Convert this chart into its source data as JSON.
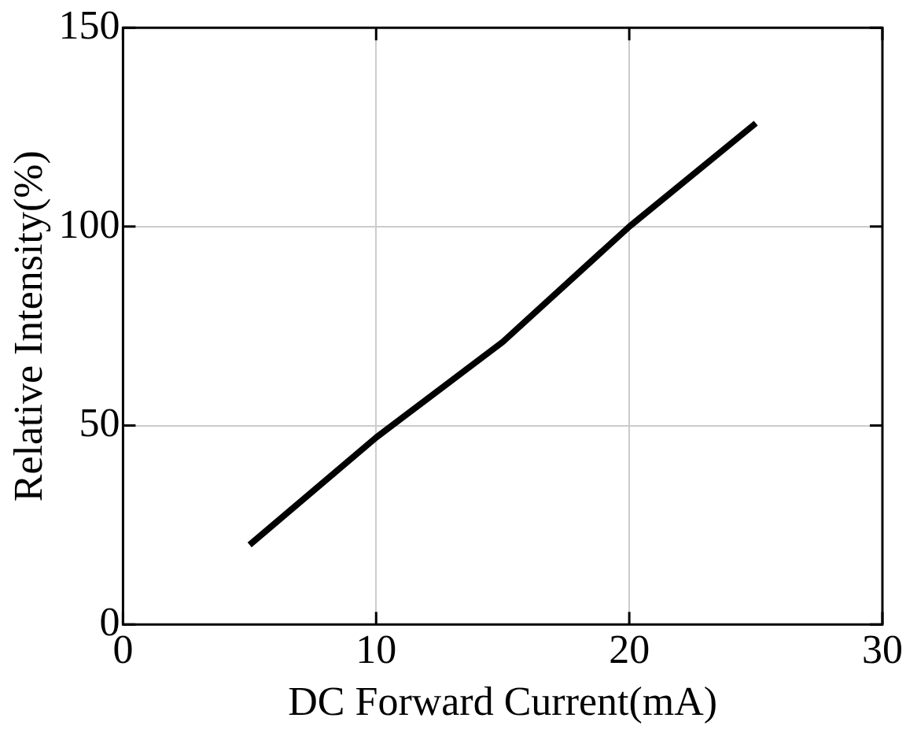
{
  "chart_data": {
    "type": "line",
    "xlabel": "DC Forward Current(mA)",
    "ylabel": "Relative Intensity(%)",
    "x": [
      5,
      10,
      15,
      20,
      25
    ],
    "series": [
      {
        "color": "#000000",
        "values": [
          20,
          47,
          71,
          100,
          126
        ]
      }
    ],
    "xlim": [
      0,
      30
    ],
    "xticks": [
      0,
      10,
      20,
      30
    ],
    "ylim": [
      0,
      150
    ],
    "yticks": [
      0,
      50,
      100,
      150
    ],
    "grid": true,
    "legend": false,
    "marker": "none",
    "line_style": "solid"
  }
}
